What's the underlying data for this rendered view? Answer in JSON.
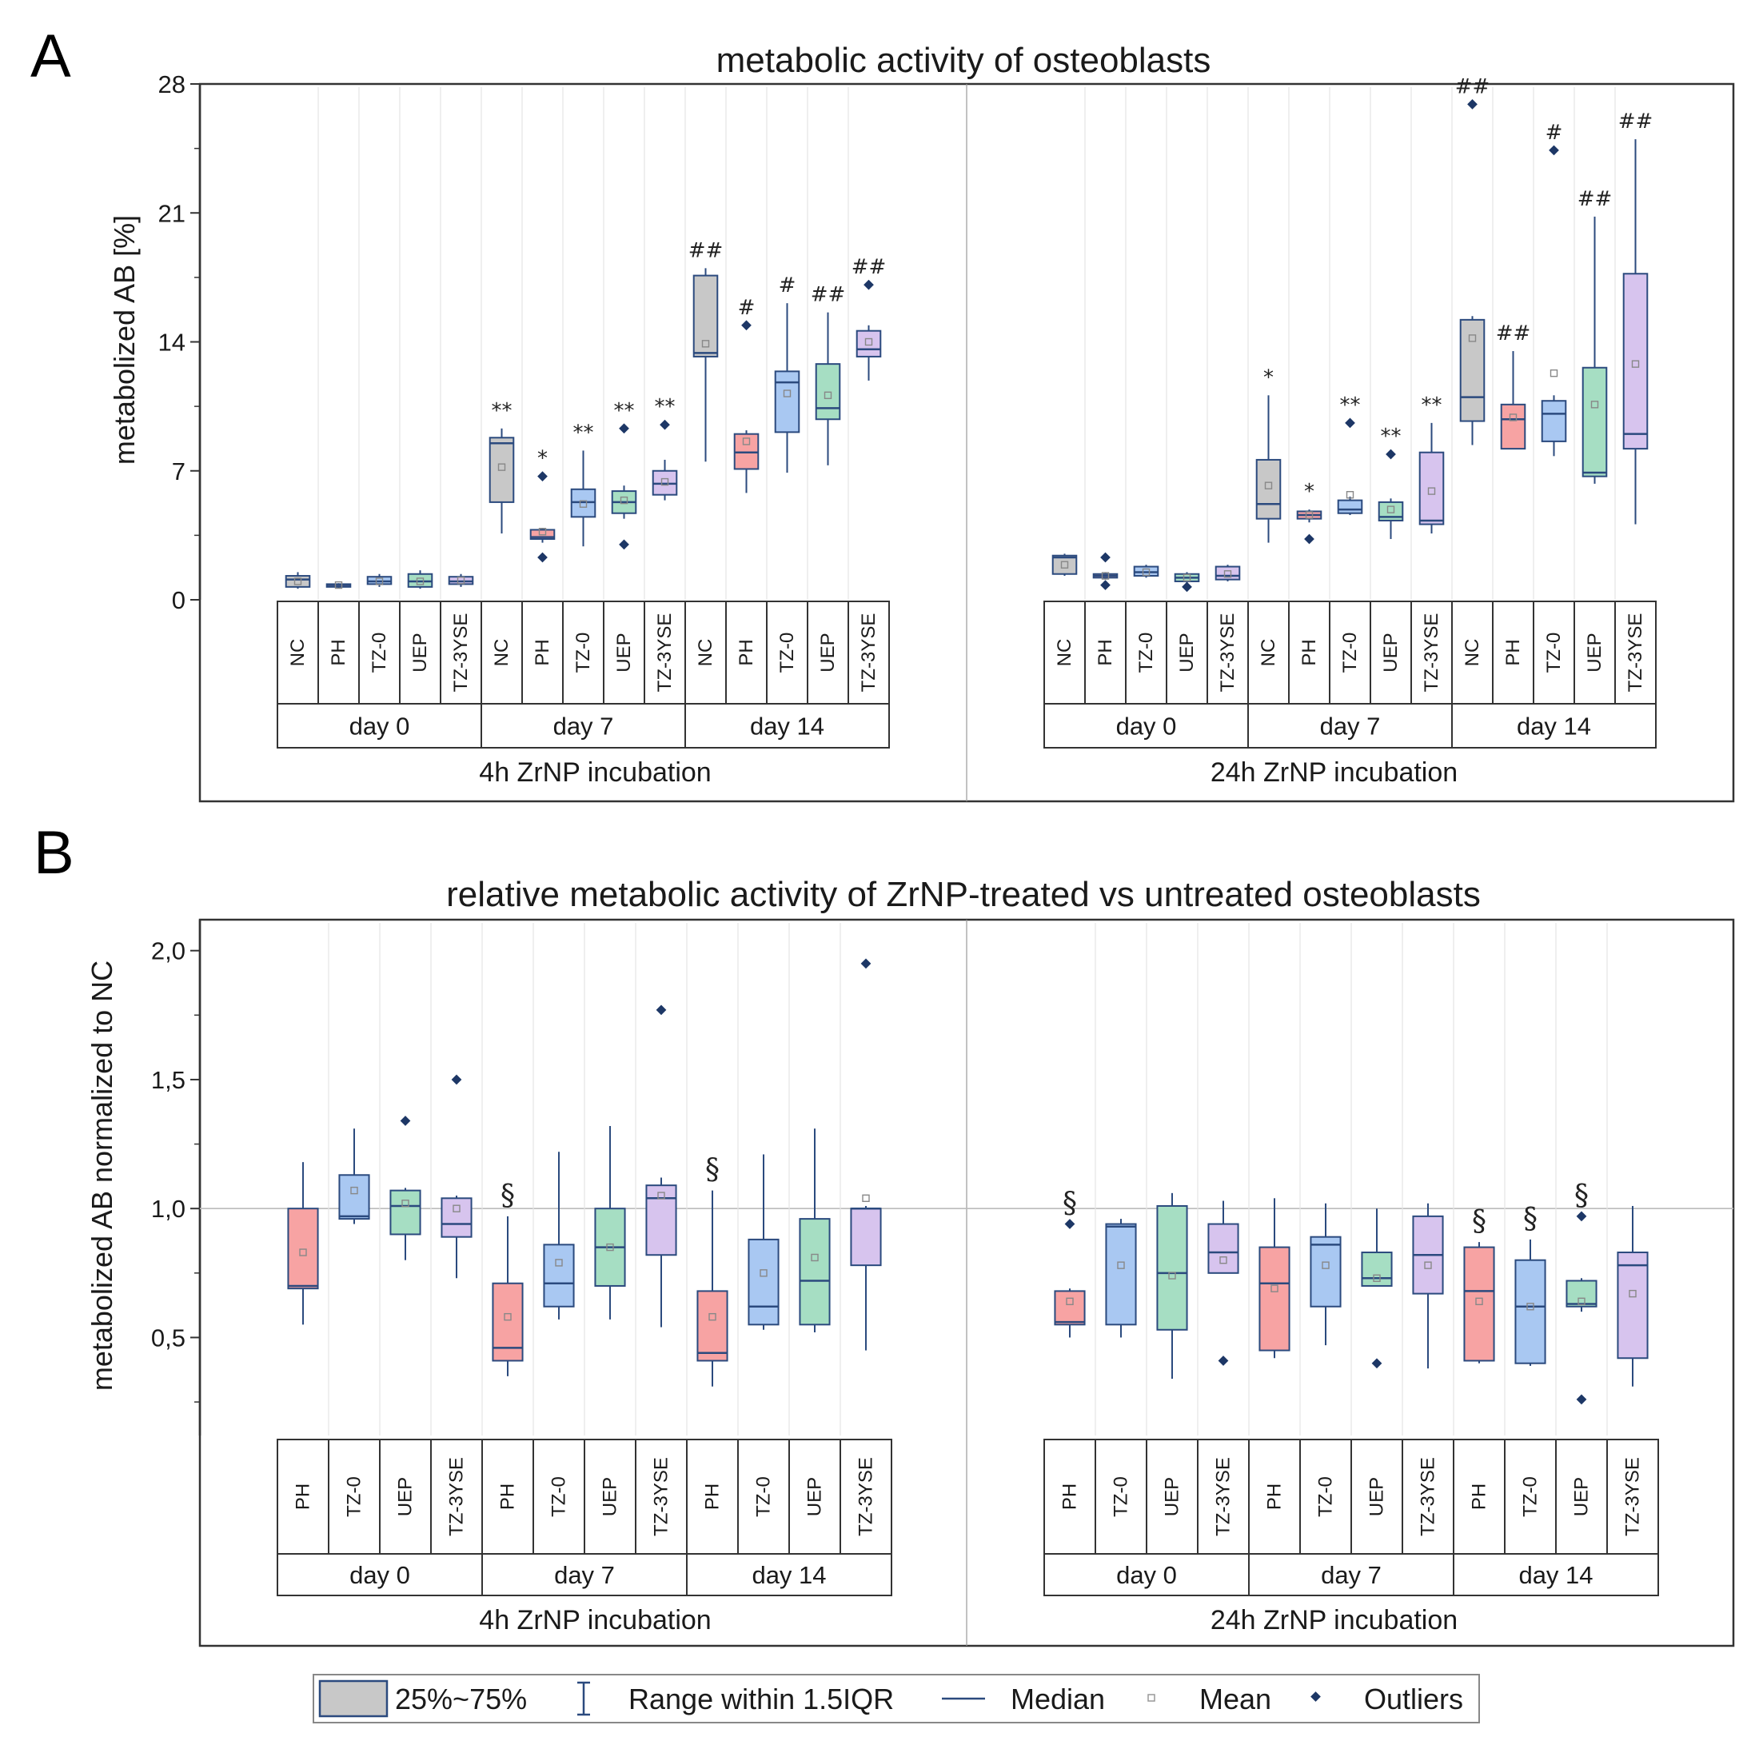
{
  "colors": {
    "NC": "#c8c8c8",
    "PH": "#f7a3a3",
    "TZ-0": "#a9c8f2",
    "UEP": "#a6dec3",
    "TZ-3YSE": "#d7c4ee",
    "edge": "#2b4a7e",
    "outlier": "#1d3766",
    "mean": "#888888"
  },
  "panelA": {
    "letter": "A",
    "title": "metabolic activity of osteoblasts",
    "ylabel": "metabolized AB [%]",
    "yticks": [
      "0",
      "7",
      "14",
      "21",
      "28"
    ],
    "ylim": [
      0,
      28
    ],
    "sections": [
      {
        "label": "4h ZrNP incubation",
        "days": [
          "day 0",
          "day 7",
          "day 14"
        ]
      },
      {
        "label": "24h ZrNP incubation",
        "days": [
          "day 0",
          "day 7",
          "day 14"
        ]
      }
    ],
    "categories": [
      "NC",
      "PH",
      "TZ-0",
      "UEP",
      "TZ-3YSE"
    ]
  },
  "panelB": {
    "letter": "B",
    "title": "relative metabolic activity of ZrNP-treated vs untreated osteoblasts",
    "ylabel": "metabolized AB normalized to NC",
    "yticks": [
      "0,5",
      "1,0",
      "1,5",
      "2,0"
    ],
    "ylim": [
      0.12,
      2.12
    ],
    "refline": 1.0,
    "sections": [
      {
        "label": "4h ZrNP incubation",
        "days": [
          "day 0",
          "day 7",
          "day 14"
        ]
      },
      {
        "label": "24h ZrNP incubation",
        "days": [
          "day 0",
          "day 7",
          "day 14"
        ]
      }
    ],
    "categories": [
      "PH",
      "TZ-0",
      "UEP",
      "TZ-3YSE"
    ]
  },
  "legend": {
    "box": "25%~75%",
    "range": "Range within 1.5IQR",
    "median": "Median",
    "mean": "Mean",
    "outliers": "Outliers"
  },
  "chart_data": [
    {
      "type": "box",
      "title": "metabolic activity of osteoblasts",
      "ylabel": "metabolized AB [%]",
      "ylim": [
        0,
        28
      ],
      "series": [
        {
          "incubation": "4h ZrNP incubation",
          "day": "day 0",
          "group": "NC",
          "min": 0.6,
          "q1": 0.7,
          "median": 1.1,
          "q3": 1.3,
          "max": 1.5,
          "mean": 1.0,
          "outliers": [],
          "annotation": ""
        },
        {
          "incubation": "4h ZrNP incubation",
          "day": "day 0",
          "group": "PH",
          "min": 0.65,
          "q1": 0.7,
          "median": 0.8,
          "q3": 0.85,
          "max": 0.9,
          "mean": 0.8,
          "outliers": [],
          "annotation": ""
        },
        {
          "incubation": "4h ZrNP incubation",
          "day": "day 0",
          "group": "TZ-0",
          "min": 0.7,
          "q1": 0.85,
          "median": 1.0,
          "q3": 1.25,
          "max": 1.4,
          "mean": 1.0,
          "outliers": [],
          "annotation": ""
        },
        {
          "incubation": "4h ZrNP incubation",
          "day": "day 0",
          "group": "UEP",
          "min": 0.6,
          "q1": 0.7,
          "median": 1.0,
          "q3": 1.4,
          "max": 1.6,
          "mean": 1.0,
          "outliers": [],
          "annotation": ""
        },
        {
          "incubation": "4h ZrNP incubation",
          "day": "day 0",
          "group": "TZ-3YSE",
          "min": 0.7,
          "q1": 0.85,
          "median": 1.0,
          "q3": 1.25,
          "max": 1.4,
          "mean": 1.05,
          "outliers": [],
          "annotation": ""
        },
        {
          "incubation": "4h ZrNP incubation",
          "day": "day 7",
          "group": "NC",
          "min": 3.6,
          "q1": 5.3,
          "median": 8.5,
          "q3": 8.8,
          "max": 9.3,
          "mean": 7.2,
          "outliers": [],
          "annotation": "**"
        },
        {
          "incubation": "4h ZrNP incubation",
          "day": "day 7",
          "group": "PH",
          "min": 3.1,
          "q1": 3.3,
          "median": 3.4,
          "q3": 3.8,
          "max": 3.9,
          "mean": 3.7,
          "outliers": [
            2.3,
            6.7
          ],
          "annotation": "*"
        },
        {
          "incubation": "4h ZrNP incubation",
          "day": "day 7",
          "group": "TZ-0",
          "min": 2.9,
          "q1": 4.5,
          "median": 5.3,
          "q3": 6.0,
          "max": 8.1,
          "mean": 5.2,
          "outliers": [],
          "annotation": "**"
        },
        {
          "incubation": "4h ZrNP incubation",
          "day": "day 7",
          "group": "UEP",
          "min": 4.4,
          "q1": 4.7,
          "median": 5.3,
          "q3": 5.9,
          "max": 6.2,
          "mean": 5.4,
          "outliers": [
            3.0,
            9.3
          ],
          "annotation": "**"
        },
        {
          "incubation": "4h ZrNP incubation",
          "day": "day 7",
          "group": "TZ-3YSE",
          "min": 5.4,
          "q1": 5.7,
          "median": 6.3,
          "q3": 7.0,
          "max": 7.6,
          "mean": 6.4,
          "outliers": [
            9.5
          ],
          "annotation": "**"
        },
        {
          "incubation": "4h ZrNP incubation",
          "day": "day 14",
          "group": "NC",
          "min": 7.5,
          "q1": 13.2,
          "median": 13.4,
          "q3": 17.6,
          "max": 18.0,
          "mean": 13.9,
          "outliers": [],
          "annotation": "##"
        },
        {
          "incubation": "4h ZrNP incubation",
          "day": "day 14",
          "group": "PH",
          "min": 5.8,
          "q1": 7.1,
          "median": 8.0,
          "q3": 9.0,
          "max": 9.2,
          "mean": 8.6,
          "outliers": [
            14.9
          ],
          "annotation": "#"
        },
        {
          "incubation": "4h ZrNP incubation",
          "day": "day 14",
          "group": "TZ-0",
          "min": 6.9,
          "q1": 9.1,
          "median": 11.8,
          "q3": 12.4,
          "max": 16.1,
          "mean": 11.2,
          "outliers": [],
          "annotation": "#"
        },
        {
          "incubation": "4h ZrNP incubation",
          "day": "day 14",
          "group": "UEP",
          "min": 7.3,
          "q1": 9.8,
          "median": 10.4,
          "q3": 12.8,
          "max": 15.6,
          "mean": 11.1,
          "outliers": [],
          "annotation": "##"
        },
        {
          "incubation": "4h ZrNP incubation",
          "day": "day 14",
          "group": "TZ-3YSE",
          "min": 11.9,
          "q1": 13.2,
          "median": 13.6,
          "q3": 14.6,
          "max": 14.9,
          "mean": 14.0,
          "outliers": [
            17.1
          ],
          "annotation": "##"
        },
        {
          "incubation": "24h ZrNP incubation",
          "day": "day 0",
          "group": "NC",
          "min": 1.3,
          "q1": 1.4,
          "median": 2.3,
          "q3": 2.4,
          "max": 2.5,
          "mean": 1.9,
          "outliers": [],
          "annotation": ""
        },
        {
          "incubation": "24h ZrNP incubation",
          "day": "day 0",
          "group": "PH",
          "min": 1.1,
          "q1": 1.2,
          "median": 1.3,
          "q3": 1.4,
          "max": 1.5,
          "mean": 1.3,
          "outliers": [
            0.8,
            2.3
          ],
          "annotation": ""
        },
        {
          "incubation": "24h ZrNP incubation",
          "day": "day 0",
          "group": "TZ-0",
          "min": 1.2,
          "q1": 1.3,
          "median": 1.5,
          "q3": 1.8,
          "max": 1.9,
          "mean": 1.5,
          "outliers": [],
          "annotation": ""
        },
        {
          "incubation": "24h ZrNP incubation",
          "day": "day 0",
          "group": "UEP",
          "min": 0.9,
          "q1": 1.0,
          "median": 1.2,
          "q3": 1.4,
          "max": 1.5,
          "mean": 1.2,
          "outliers": [
            0.7
          ],
          "annotation": ""
        },
        {
          "incubation": "24h ZrNP incubation",
          "day": "day 0",
          "group": "TZ-3YSE",
          "min": 1.0,
          "q1": 1.1,
          "median": 1.3,
          "q3": 1.8,
          "max": 1.9,
          "mean": 1.4,
          "outliers": [],
          "annotation": ""
        },
        {
          "incubation": "24h ZrNP incubation",
          "day": "day 7",
          "group": "NC",
          "min": 3.1,
          "q1": 4.4,
          "median": 5.2,
          "q3": 7.6,
          "max": 11.1,
          "mean": 6.2,
          "outliers": [],
          "annotation": "*"
        },
        {
          "incubation": "24h ZrNP incubation",
          "day": "day 7",
          "group": "PH",
          "min": 4.2,
          "q1": 4.4,
          "median": 4.6,
          "q3": 4.8,
          "max": 4.9,
          "mean": 4.6,
          "outliers": [
            3.3
          ],
          "annotation": "*"
        },
        {
          "incubation": "24h ZrNP incubation",
          "day": "day 7",
          "group": "TZ-0",
          "min": 4.6,
          "q1": 4.7,
          "median": 4.9,
          "q3": 5.4,
          "max": 5.6,
          "mean": 5.7,
          "outliers": [
            9.6
          ],
          "annotation": "**"
        },
        {
          "incubation": "24h ZrNP incubation",
          "day": "day 7",
          "group": "UEP",
          "min": 3.3,
          "q1": 4.3,
          "median": 4.5,
          "q3": 5.3,
          "max": 5.5,
          "mean": 4.9,
          "outliers": [
            7.9
          ],
          "annotation": "**"
        },
        {
          "incubation": "24h ZrNP incubation",
          "day": "day 7",
          "group": "TZ-3YSE",
          "min": 3.6,
          "q1": 4.1,
          "median": 4.3,
          "q3": 8.0,
          "max": 9.6,
          "mean": 5.9,
          "outliers": [],
          "annotation": "**"
        },
        {
          "incubation": "24h ZrNP incubation",
          "day": "day 14",
          "group": "NC",
          "min": 8.4,
          "q1": 9.7,
          "median": 11.0,
          "q3": 15.2,
          "max": 15.4,
          "mean": 14.2,
          "outliers": [
            26.9
          ],
          "annotation": "##"
        },
        {
          "incubation": "24h ZrNP incubation",
          "day": "day 14",
          "group": "PH",
          "min": 8.2,
          "q1": 8.2,
          "median": 9.8,
          "q3": 10.6,
          "max": 13.5,
          "mean": 9.9,
          "outliers": [],
          "annotation": "##"
        },
        {
          "incubation": "24h ZrNP incubation",
          "day": "day 14",
          "group": "TZ-0",
          "min": 7.8,
          "q1": 8.6,
          "median": 10.1,
          "q3": 10.8,
          "max": 11.1,
          "mean": 12.3,
          "outliers": [
            24.4
          ],
          "annotation": "#"
        },
        {
          "incubation": "24h ZrNP incubation",
          "day": "day 14",
          "group": "UEP",
          "min": 6.3,
          "q1": 6.7,
          "median": 6.9,
          "q3": 12.6,
          "max": 20.8,
          "mean": 10.6,
          "outliers": [],
          "annotation": "##"
        },
        {
          "incubation": "24h ZrNP incubation",
          "day": "day 14",
          "group": "TZ-3YSE",
          "min": 4.1,
          "q1": 8.2,
          "median": 9.0,
          "q3": 17.7,
          "max": 25.0,
          "mean": 12.8,
          "outliers": [],
          "annotation": "##"
        }
      ]
    },
    {
      "type": "box",
      "title": "relative metabolic activity of ZrNP-treated vs untreated osteoblasts",
      "ylabel": "metabolized AB normalized to NC",
      "ylim": [
        0.12,
        2.12
      ],
      "series": [
        {
          "incubation": "4h ZrNP incubation",
          "day": "day 0",
          "group": "PH",
          "min": 0.55,
          "q1": 0.69,
          "median": 0.7,
          "q3": 1.0,
          "max": 1.18,
          "mean": 0.83,
          "outliers": [],
          "annotation": ""
        },
        {
          "incubation": "4h ZrNP incubation",
          "day": "day 0",
          "group": "TZ-0",
          "min": 0.94,
          "q1": 0.96,
          "median": 0.97,
          "q3": 1.13,
          "max": 1.31,
          "mean": 1.07,
          "outliers": [],
          "annotation": ""
        },
        {
          "incubation": "4h ZrNP incubation",
          "day": "day 0",
          "group": "UEP",
          "min": 0.8,
          "q1": 0.9,
          "median": 1.01,
          "q3": 1.07,
          "max": 1.08,
          "mean": 1.02,
          "outliers": [
            1.34
          ],
          "annotation": ""
        },
        {
          "incubation": "4h ZrNP incubation",
          "day": "day 0",
          "group": "TZ-3YSE",
          "min": 0.73,
          "q1": 0.89,
          "median": 0.94,
          "q3": 1.04,
          "max": 1.05,
          "mean": 1.0,
          "outliers": [
            1.5
          ],
          "annotation": ""
        },
        {
          "incubation": "4h ZrNP incubation",
          "day": "day 7",
          "group": "PH",
          "min": 0.35,
          "q1": 0.41,
          "median": 0.46,
          "q3": 0.71,
          "max": 0.97,
          "mean": 0.58,
          "outliers": [],
          "annotation": "§"
        },
        {
          "incubation": "4h ZrNP incubation",
          "day": "day 7",
          "group": "TZ-0",
          "min": 0.57,
          "q1": 0.62,
          "median": 0.71,
          "q3": 0.86,
          "max": 1.22,
          "mean": 0.79,
          "outliers": [],
          "annotation": ""
        },
        {
          "incubation": "4h ZrNP incubation",
          "day": "day 7",
          "group": "UEP",
          "min": 0.57,
          "q1": 0.7,
          "median": 0.85,
          "q3": 1.0,
          "max": 1.32,
          "mean": 0.85,
          "outliers": [],
          "annotation": ""
        },
        {
          "incubation": "4h ZrNP incubation",
          "day": "day 7",
          "group": "TZ-3YSE",
          "min": 0.54,
          "q1": 0.82,
          "median": 1.04,
          "q3": 1.09,
          "max": 1.12,
          "mean": 1.05,
          "outliers": [
            1.77
          ],
          "annotation": ""
        },
        {
          "incubation": "4h ZrNP incubation",
          "day": "day 14",
          "group": "PH",
          "min": 0.31,
          "q1": 0.41,
          "median": 0.44,
          "q3": 0.68,
          "max": 1.07,
          "mean": 0.58,
          "outliers": [],
          "annotation": "§"
        },
        {
          "incubation": "4h ZrNP incubation",
          "day": "day 14",
          "group": "TZ-0",
          "min": 0.53,
          "q1": 0.55,
          "median": 0.62,
          "q3": 0.88,
          "max": 1.21,
          "mean": 0.75,
          "outliers": [],
          "annotation": ""
        },
        {
          "incubation": "4h ZrNP incubation",
          "day": "day 14",
          "group": "UEP",
          "min": 0.52,
          "q1": 0.55,
          "median": 0.72,
          "q3": 0.96,
          "max": 1.31,
          "mean": 0.81,
          "outliers": [],
          "annotation": ""
        },
        {
          "incubation": "4h ZrNP incubation",
          "day": "day 14",
          "group": "TZ-3YSE",
          "min": 0.45,
          "q1": 0.78,
          "median": 1.0,
          "q3": 1.0,
          "max": 1.01,
          "mean": 1.04,
          "outliers": [
            1.95
          ],
          "annotation": ""
        },
        {
          "incubation": "24h ZrNP incubation",
          "day": "day 0",
          "group": "PH",
          "min": 0.5,
          "q1": 0.55,
          "median": 0.56,
          "q3": 0.68,
          "max": 0.69,
          "mean": 0.64,
          "outliers": [
            0.94
          ],
          "annotation": "§"
        },
        {
          "incubation": "24h ZrNP incubation",
          "day": "day 0",
          "group": "TZ-0",
          "min": 0.5,
          "q1": 0.55,
          "median": 0.93,
          "q3": 0.94,
          "max": 0.96,
          "mean": 0.78,
          "outliers": [],
          "annotation": ""
        },
        {
          "incubation": "24h ZrNP incubation",
          "day": "day 0",
          "group": "UEP",
          "min": 0.34,
          "q1": 0.53,
          "median": 0.75,
          "q3": 1.01,
          "max": 1.06,
          "mean": 0.74,
          "outliers": [],
          "annotation": ""
        },
        {
          "incubation": "24h ZrNP incubation",
          "day": "day 0",
          "group": "TZ-3YSE",
          "min": 0.75,
          "q1": 0.75,
          "median": 0.83,
          "q3": 0.94,
          "max": 1.03,
          "mean": 0.8,
          "outliers": [
            0.41
          ],
          "annotation": ""
        },
        {
          "incubation": "24h ZrNP incubation",
          "day": "day 7",
          "group": "PH",
          "min": 0.42,
          "q1": 0.45,
          "median": 0.71,
          "q3": 0.85,
          "max": 1.04,
          "mean": 0.69,
          "outliers": [],
          "annotation": ""
        },
        {
          "incubation": "24h ZrNP incubation",
          "day": "day 7",
          "group": "TZ-0",
          "min": 0.47,
          "q1": 0.62,
          "median": 0.86,
          "q3": 0.89,
          "max": 1.02,
          "mean": 0.78,
          "outliers": [],
          "annotation": ""
        },
        {
          "incubation": "24h ZrNP incubation",
          "day": "day 7",
          "group": "UEP",
          "min": 0.7,
          "q1": 0.7,
          "median": 0.73,
          "q3": 0.83,
          "max": 1.0,
          "mean": 0.73,
          "outliers": [
            0.4
          ],
          "annotation": ""
        },
        {
          "incubation": "24h ZrNP incubation",
          "day": "day 7",
          "group": "TZ-3YSE",
          "min": 0.38,
          "q1": 0.67,
          "median": 0.82,
          "q3": 0.97,
          "max": 1.02,
          "mean": 0.78,
          "outliers": [],
          "annotation": ""
        },
        {
          "incubation": "24h ZrNP incubation",
          "day": "day 14",
          "group": "PH",
          "min": 0.4,
          "q1": 0.41,
          "median": 0.68,
          "q3": 0.85,
          "max": 0.87,
          "mean": 0.64,
          "outliers": [],
          "annotation": "§"
        },
        {
          "incubation": "24h ZrNP incubation",
          "day": "day 14",
          "group": "TZ-0",
          "min": 0.39,
          "q1": 0.4,
          "median": 0.62,
          "q3": 0.8,
          "max": 0.88,
          "mean": 0.62,
          "outliers": [],
          "annotation": "§"
        },
        {
          "incubation": "24h ZrNP incubation",
          "day": "day 14",
          "group": "UEP",
          "min": 0.6,
          "q1": 0.62,
          "median": 0.63,
          "q3": 0.72,
          "max": 0.73,
          "mean": 0.64,
          "outliers": [
            0.26,
            0.97
          ],
          "annotation": "§"
        },
        {
          "incubation": "24h ZrNP incubation",
          "day": "day 14",
          "group": "TZ-3YSE",
          "min": 0.31,
          "q1": 0.42,
          "median": 0.78,
          "q3": 0.83,
          "max": 1.01,
          "mean": 0.67,
          "outliers": [],
          "annotation": ""
        }
      ]
    }
  ]
}
